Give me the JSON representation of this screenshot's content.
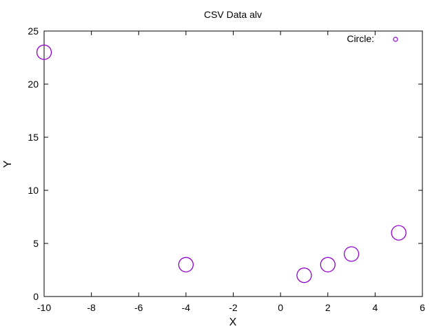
{
  "chart_data": {
    "type": "scatter",
    "title": "CSV Data alv",
    "xlabel": "X",
    "ylabel": "Y",
    "xlim": [
      -10,
      6
    ],
    "ylim": [
      0,
      25
    ],
    "xticks": [
      -10,
      -8,
      -6,
      -4,
      -2,
      0,
      2,
      4,
      6
    ],
    "yticks": [
      0,
      5,
      10,
      15,
      20,
      25
    ],
    "grid": false,
    "legend_position": "top-right",
    "series": [
      {
        "name": "Circle:",
        "color": "#9400d3",
        "marker": "circle",
        "x": [
          -10,
          -4,
          1,
          2,
          3,
          5
        ],
        "y": [
          23,
          3,
          2,
          3,
          4,
          6
        ]
      }
    ]
  }
}
